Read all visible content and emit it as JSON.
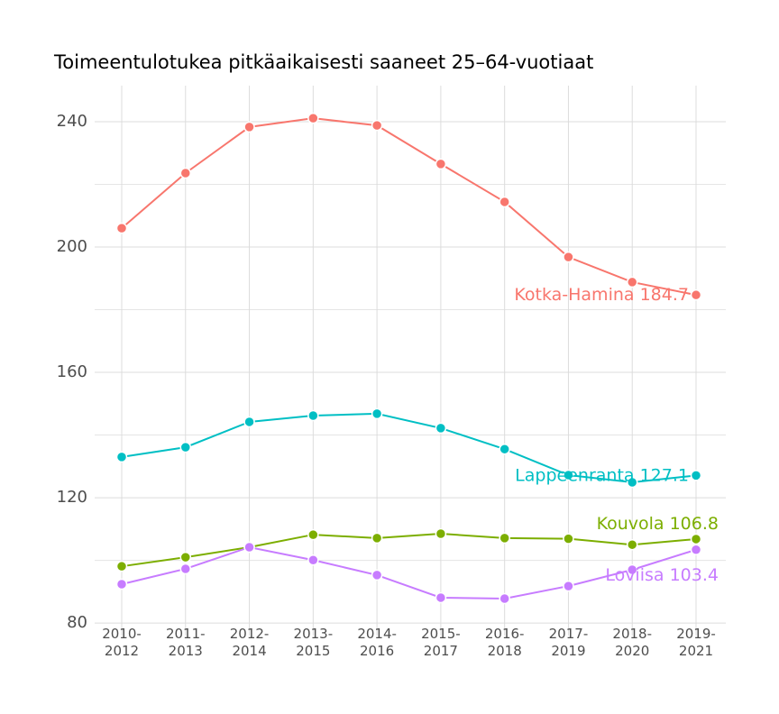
{
  "chart_data": {
    "type": "line",
    "title": "Toimeentulotukea pitkäaikaisesti saaneet 25–64-vuotiaat",
    "categories": [
      "2010-2012",
      "2011-2013",
      "2012-2014",
      "2013-2015",
      "2014-2016",
      "2015-2017",
      "2016-2018",
      "2017-2019",
      "2018-2020",
      "2019-2021"
    ],
    "series": [
      {
        "name": "Kotka-Hamina",
        "color": "#f8766d",
        "values": [
          206.0,
          223.6,
          238.3,
          241.1,
          238.8,
          226.5,
          214.4,
          196.8,
          188.8,
          184.7
        ]
      },
      {
        "name": "Lappeenranta",
        "color": "#00bfc4",
        "values": [
          133.0,
          136.1,
          144.2,
          146.2,
          146.8,
          142.2,
          135.5,
          127.2,
          124.9,
          127.1
        ]
      },
      {
        "name": "Kouvola",
        "color": "#7cae00",
        "values": [
          98.1,
          101.0,
          104.2,
          108.2,
          107.1,
          108.5,
          107.1,
          106.9,
          105.0,
          106.8
        ]
      },
      {
        "name": "Loviisa",
        "color": "#c77cff",
        "values": [
          92.4,
          97.3,
          104.2,
          100.1,
          95.3,
          88.1,
          87.8,
          91.8,
          97.0,
          103.4
        ]
      }
    ],
    "ylim": [
      76,
      251.5
    ],
    "yticks": [
      80,
      120,
      160,
      200,
      240
    ],
    "y_minor_grid": [
      100,
      140,
      180,
      220
    ],
    "grid": true
  }
}
